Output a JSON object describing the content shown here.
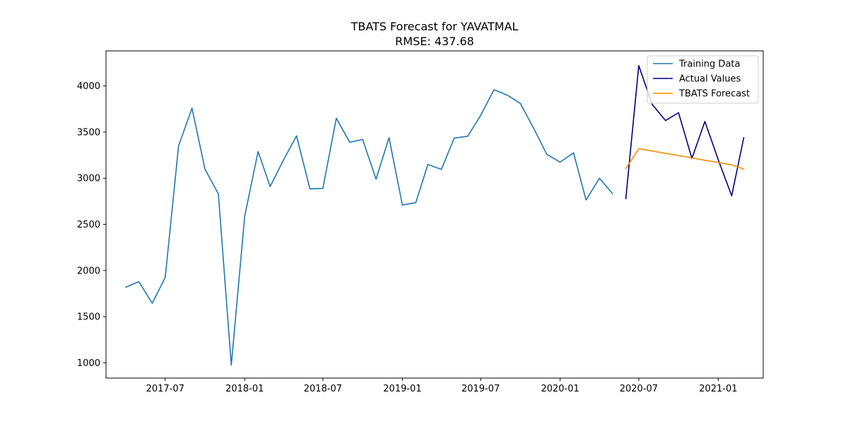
{
  "chart_data": {
    "type": "line",
    "title": "TBATS Forecast for YAVATMAL",
    "subtitle": "RMSE: 437.68",
    "xlabel": "",
    "ylabel": "",
    "xlim": [
      "2017-02-14",
      "2021-04-15"
    ],
    "ylim": [
      835,
      4380
    ],
    "grid": false,
    "legend_position": "top-right",
    "y_ticks": [
      1000,
      1500,
      2000,
      2500,
      3000,
      3500,
      4000
    ],
    "x_ticks": [
      {
        "date": "2017-07-01",
        "label": "2017-07"
      },
      {
        "date": "2018-01-01",
        "label": "2018-01"
      },
      {
        "date": "2018-07-01",
        "label": "2018-07"
      },
      {
        "date": "2019-01-01",
        "label": "2019-01"
      },
      {
        "date": "2019-07-01",
        "label": "2019-07"
      },
      {
        "date": "2020-01-01",
        "label": "2020-01"
      },
      {
        "date": "2020-07-01",
        "label": "2020-07"
      },
      {
        "date": "2021-01-01",
        "label": "2021-01"
      }
    ],
    "series": [
      {
        "name": "Training Data",
        "color": "#1f77b4",
        "points": [
          {
            "x": "2017-04-01",
            "y": 1820
          },
          {
            "x": "2017-05-01",
            "y": 1880
          },
          {
            "x": "2017-06-01",
            "y": 1645
          },
          {
            "x": "2017-07-01",
            "y": 1925
          },
          {
            "x": "2017-08-01",
            "y": 3350
          },
          {
            "x": "2017-09-01",
            "y": 3760
          },
          {
            "x": "2017-10-01",
            "y": 3100
          },
          {
            "x": "2017-11-01",
            "y": 2830
          },
          {
            "x": "2017-12-01",
            "y": 975
          },
          {
            "x": "2018-01-01",
            "y": 2590
          },
          {
            "x": "2018-02-01",
            "y": 3290
          },
          {
            "x": "2018-03-01",
            "y": 2910
          },
          {
            "x": "2018-04-01",
            "y": 3200
          },
          {
            "x": "2018-05-01",
            "y": 3460
          },
          {
            "x": "2018-06-01",
            "y": 2885
          },
          {
            "x": "2018-07-01",
            "y": 2890
          },
          {
            "x": "2018-08-01",
            "y": 3650
          },
          {
            "x": "2018-09-01",
            "y": 3390
          },
          {
            "x": "2018-10-01",
            "y": 3420
          },
          {
            "x": "2018-11-01",
            "y": 2990
          },
          {
            "x": "2018-12-01",
            "y": 3440
          },
          {
            "x": "2019-01-01",
            "y": 2710
          },
          {
            "x": "2019-02-01",
            "y": 2735
          },
          {
            "x": "2019-03-01",
            "y": 3150
          },
          {
            "x": "2019-04-01",
            "y": 3095
          },
          {
            "x": "2019-05-01",
            "y": 3435
          },
          {
            "x": "2019-06-01",
            "y": 3455
          },
          {
            "x": "2019-07-01",
            "y": 3680
          },
          {
            "x": "2019-08-01",
            "y": 3960
          },
          {
            "x": "2019-09-01",
            "y": 3900
          },
          {
            "x": "2019-10-01",
            "y": 3810
          },
          {
            "x": "2019-11-01",
            "y": 3540
          },
          {
            "x": "2019-12-01",
            "y": 3260
          },
          {
            "x": "2020-01-01",
            "y": 3175
          },
          {
            "x": "2020-02-01",
            "y": 3275
          },
          {
            "x": "2020-03-01",
            "y": 2765
          },
          {
            "x": "2020-04-01",
            "y": 3000
          },
          {
            "x": "2020-05-01",
            "y": 2835
          }
        ]
      },
      {
        "name": "Actual Values",
        "color": "#000080",
        "points": [
          {
            "x": "2020-06-01",
            "y": 2780
          },
          {
            "x": "2020-07-01",
            "y": 4220
          },
          {
            "x": "2020-08-01",
            "y": 3800
          },
          {
            "x": "2020-09-01",
            "y": 3625
          },
          {
            "x": "2020-10-01",
            "y": 3710
          },
          {
            "x": "2020-11-01",
            "y": 3215
          },
          {
            "x": "2020-12-01",
            "y": 3615
          },
          {
            "x": "2021-01-01",
            "y": 3200
          },
          {
            "x": "2021-02-01",
            "y": 2810
          },
          {
            "x": "2021-03-01",
            "y": 3440
          }
        ]
      },
      {
        "name": "TBATS Forecast",
        "color": "#ff8c00",
        "points": [
          {
            "x": "2020-06-01",
            "y": 3105
          },
          {
            "x": "2020-07-01",
            "y": 3320
          },
          {
            "x": "2020-08-01",
            "y": 3295
          },
          {
            "x": "2020-09-01",
            "y": 3270
          },
          {
            "x": "2020-10-01",
            "y": 3245
          },
          {
            "x": "2020-11-01",
            "y": 3220
          },
          {
            "x": "2020-12-01",
            "y": 3195
          },
          {
            "x": "2021-01-01",
            "y": 3170
          },
          {
            "x": "2021-02-01",
            "y": 3145
          },
          {
            "x": "2021-03-01",
            "y": 3100
          }
        ]
      }
    ]
  }
}
